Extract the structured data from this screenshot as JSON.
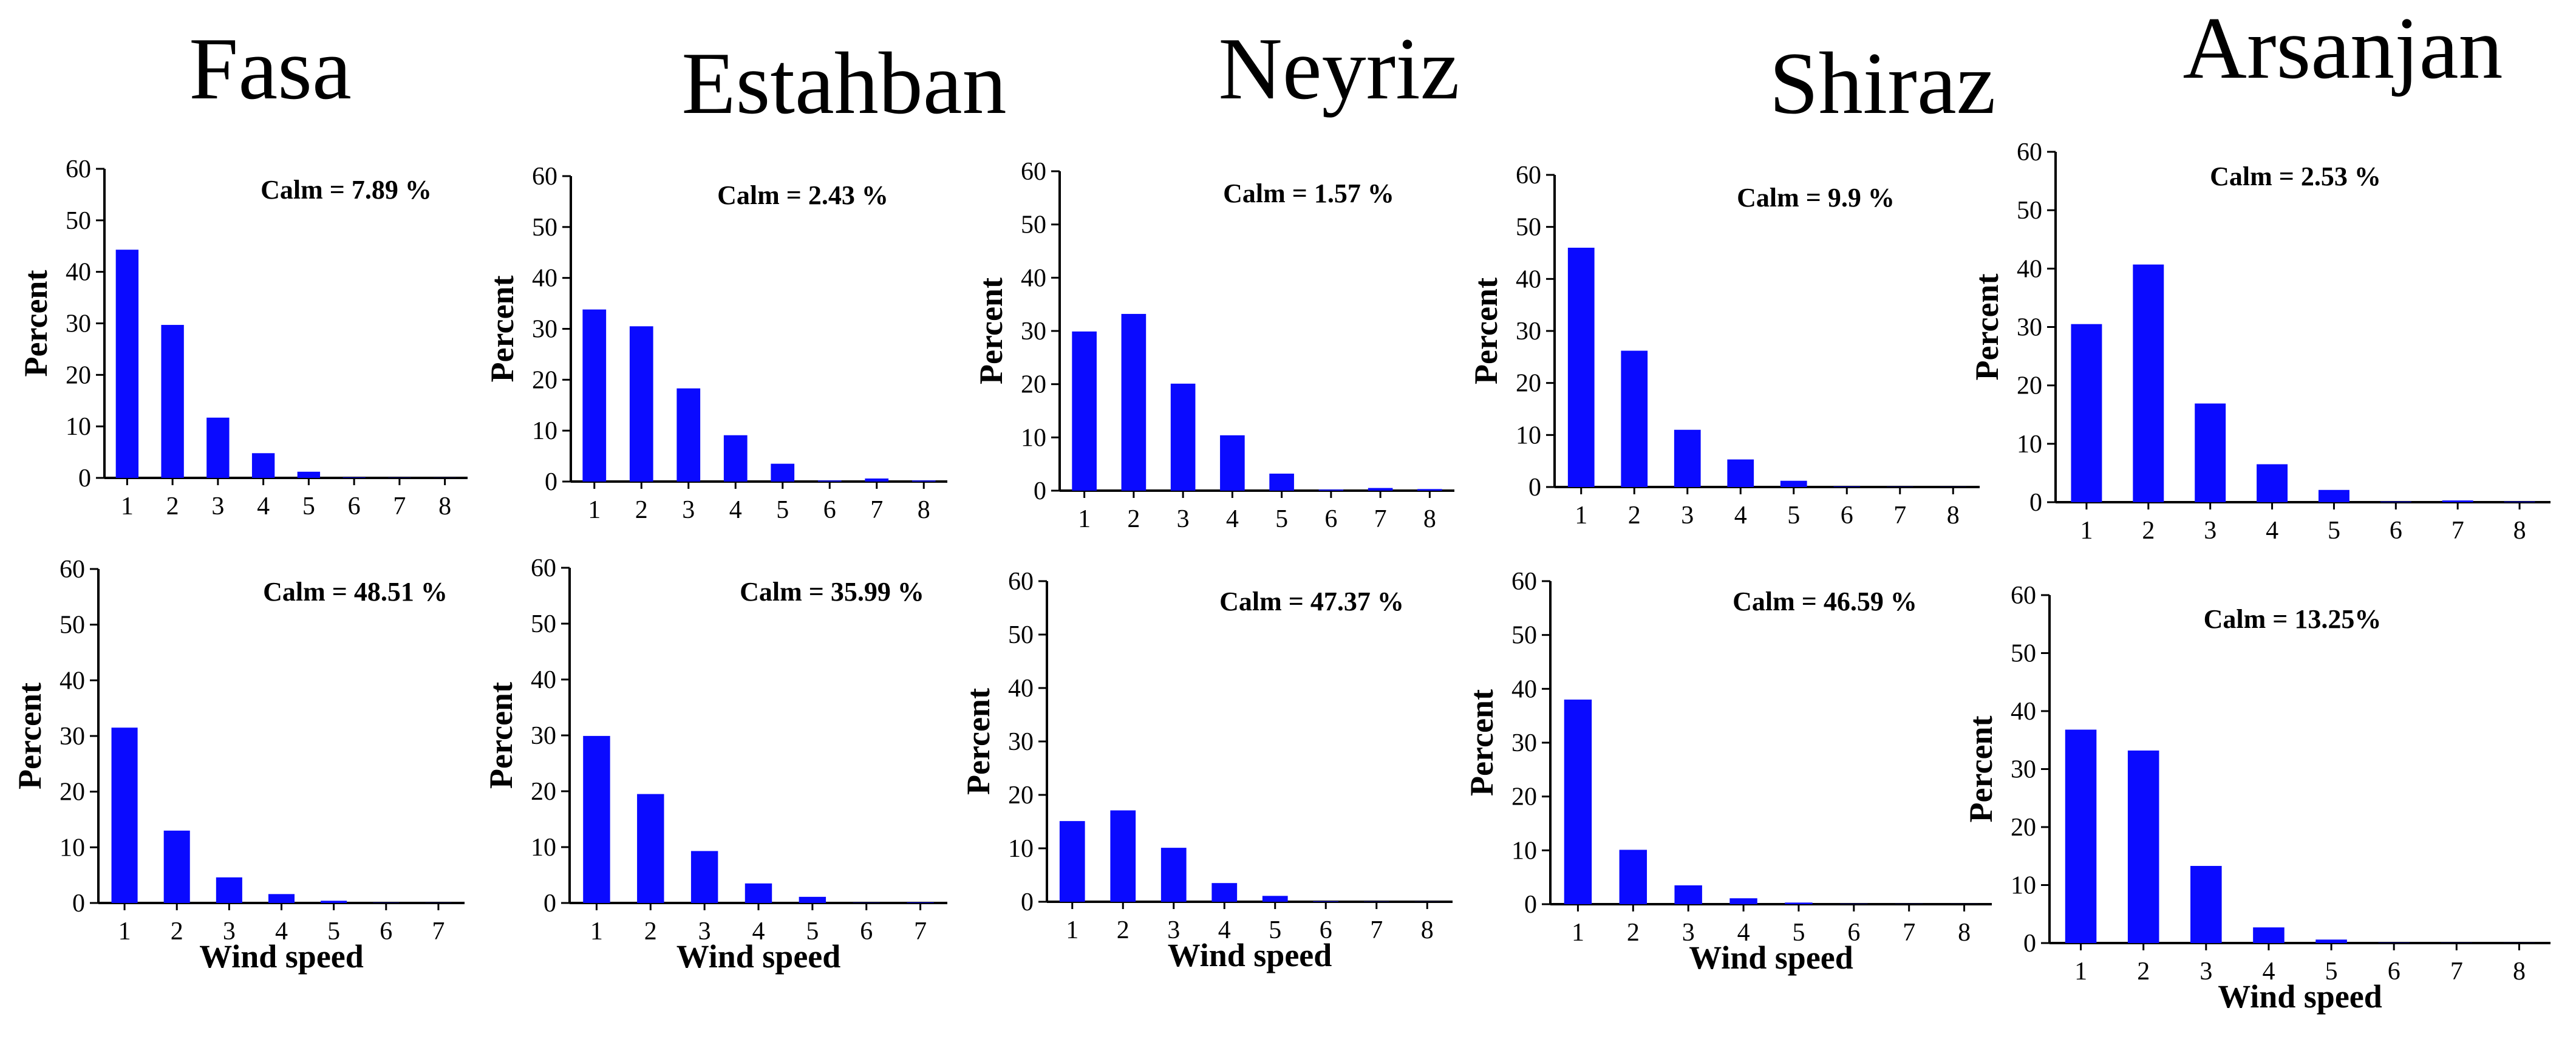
{
  "cities": [
    "Fasa",
    "Estahban",
    "Neyriz",
    "Shiraz",
    "Arsanjan"
  ],
  "colors": {
    "bar": "#0a0aff",
    "axis": "#000000"
  },
  "chart_data": [
    {
      "type": "bar",
      "city": "Fasa",
      "row": "top",
      "categories": [
        "1",
        "2",
        "3",
        "4",
        "5",
        "6",
        "7",
        "8"
      ],
      "values": [
        44.3,
        29.7,
        11.7,
        4.8,
        1.2,
        0.1,
        0.05,
        0.03
      ],
      "annotation": "Calm = 7.89 %",
      "ylabel": "Percent",
      "xlabel": "",
      "ylim": [
        0,
        60
      ],
      "yticks": [
        0,
        10,
        20,
        30,
        40,
        50,
        60
      ]
    },
    {
      "type": "bar",
      "city": "Estahban",
      "row": "top",
      "categories": [
        "1",
        "2",
        "3",
        "4",
        "5",
        "6",
        "7",
        "8"
      ],
      "values": [
        33.8,
        30.5,
        18.3,
        9.1,
        3.5,
        0.2,
        0.6,
        0.2
      ],
      "annotation": "Calm = 2.43 %",
      "ylabel": "Percent",
      "xlabel": "",
      "ylim": [
        0,
        60
      ],
      "yticks": [
        0,
        10,
        20,
        30,
        40,
        50,
        60
      ]
    },
    {
      "type": "bar",
      "city": "Neyriz",
      "row": "top",
      "categories": [
        "1",
        "2",
        "3",
        "4",
        "5",
        "6",
        "7",
        "8"
      ],
      "values": [
        29.9,
        33.2,
        20.1,
        10.4,
        3.2,
        0.2,
        0.5,
        0.3
      ],
      "annotation": "Calm = 1.57 %",
      "ylabel": "Percent",
      "xlabel": "",
      "ylim": [
        0,
        60
      ],
      "yticks": [
        0,
        10,
        20,
        30,
        40,
        50,
        60
      ]
    },
    {
      "type": "bar",
      "city": "Shiraz",
      "row": "top",
      "categories": [
        "1",
        "2",
        "3",
        "4",
        "5",
        "6",
        "7",
        "8"
      ],
      "values": [
        46.0,
        26.2,
        11.0,
        5.3,
        1.2,
        0.1,
        0.05,
        0.03
      ],
      "annotation": "Calm = 9.9 %",
      "ylabel": "Percent",
      "xlabel": "",
      "ylim": [
        0,
        60
      ],
      "yticks": [
        0,
        10,
        20,
        30,
        40,
        50,
        60
      ]
    },
    {
      "type": "bar",
      "city": "Arsanjan",
      "row": "top",
      "categories": [
        "1",
        "2",
        "3",
        "4",
        "5",
        "6",
        "7",
        "8"
      ],
      "values": [
        30.5,
        40.7,
        16.9,
        6.5,
        2.1,
        0.1,
        0.3,
        0.1
      ],
      "annotation": "Calm = 2.53 %",
      "ylabel": "Percent",
      "xlabel": "",
      "ylim": [
        0,
        60
      ],
      "yticks": [
        0,
        10,
        20,
        30,
        40,
        50,
        60
      ]
    },
    {
      "type": "bar",
      "city": "Fasa",
      "row": "bottom",
      "categories": [
        "1",
        "2",
        "3",
        "4",
        "5",
        "6",
        "7"
      ],
      "values": [
        31.5,
        13.0,
        4.6,
        1.6,
        0.4,
        0.05,
        0.03
      ],
      "annotation": "Calm = 48.51 %",
      "ylabel": "Percent",
      "xlabel": "Wind speed",
      "ylim": [
        0,
        60
      ],
      "yticks": [
        0,
        10,
        20,
        30,
        40,
        50,
        60
      ]
    },
    {
      "type": "bar",
      "city": "Estahban",
      "row": "bottom",
      "categories": [
        "1",
        "2",
        "3",
        "4",
        "5",
        "6",
        "7"
      ],
      "values": [
        29.9,
        19.5,
        9.3,
        3.5,
        1.1,
        0.05,
        0.1
      ],
      "annotation": "Calm = 35.99 %",
      "ylabel": "Percent",
      "xlabel": "Wind speed",
      "ylim": [
        0,
        60
      ],
      "yticks": [
        0,
        10,
        20,
        30,
        40,
        50,
        60
      ]
    },
    {
      "type": "bar",
      "city": "Neyriz",
      "row": "bottom",
      "categories": [
        "1",
        "2",
        "3",
        "4",
        "5",
        "6",
        "7",
        "8"
      ],
      "values": [
        15.1,
        17.1,
        10.1,
        3.5,
        1.1,
        0.1,
        0.05,
        0.03
      ],
      "annotation": "Calm = 47.37 %",
      "ylabel": "Percent",
      "xlabel": "Wind speed",
      "ylim": [
        0,
        60
      ],
      "yticks": [
        0,
        10,
        20,
        30,
        40,
        50,
        60
      ]
    },
    {
      "type": "bar",
      "city": "Shiraz",
      "row": "bottom",
      "categories": [
        "1",
        "2",
        "3",
        "4",
        "5",
        "6",
        "7",
        "8"
      ],
      "values": [
        38.0,
        10.1,
        3.5,
        1.1,
        0.3,
        0.05,
        0.03,
        0.02
      ],
      "annotation": "Calm = 46.59 %",
      "ylabel": "Percent",
      "xlabel": "Wind speed",
      "ylim": [
        0,
        60
      ],
      "yticks": [
        0,
        10,
        20,
        30,
        40,
        50,
        60
      ]
    },
    {
      "type": "bar",
      "city": "Arsanjan",
      "row": "bottom",
      "categories": [
        "1",
        "2",
        "3",
        "4",
        "5",
        "6",
        "7",
        "8"
      ],
      "values": [
        36.8,
        33.2,
        13.3,
        2.7,
        0.6,
        0.05,
        0.03,
        0.02
      ],
      "annotation": "Calm = 13.25%",
      "ylabel": "Percent",
      "xlabel": "Wind speed",
      "ylim": [
        0,
        60
      ],
      "yticks": [
        0,
        10,
        20,
        30,
        40,
        50,
        60
      ]
    }
  ]
}
